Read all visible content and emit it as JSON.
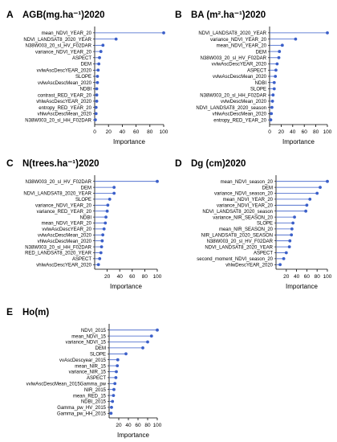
{
  "chart_data": [
    {
      "panel_letter": "A",
      "title": "AGB(mg.ha⁻¹)2020",
      "type": "lollipop",
      "xlabel": "Importance",
      "xlim": [
        0,
        100
      ],
      "xticks": [
        0,
        20,
        40,
        60,
        80,
        100
      ],
      "categories": [
        "mean_NDVI_YEAR_20",
        "NDVI_LANDSAT8_2020_YEAR",
        "N38W003_20_sl_HV_F02DAR",
        "variance_NDVI_YEAR_20",
        "ASPECT",
        "DEM",
        "vvlwAscDescYEAR_2020",
        "SLOPE",
        "vvlwAscDescMean_2020",
        "NDBI",
        "contrast_RED_YEAR_20",
        "vhlwAscDescYEAR_2020",
        "entropy_RED_YEAR_20",
        "vhlwAscDescMean_2020",
        "N38W003_20_sl_HH_F02DAR"
      ],
      "values": [
        100,
        31,
        12,
        9,
        7,
        6,
        5,
        4,
        4,
        3,
        3,
        3,
        2,
        2,
        1
      ]
    },
    {
      "panel_letter": "B",
      "title": "BA (m².ha⁻¹)2020",
      "type": "lollipop",
      "xlabel": "Importance",
      "xlim": [
        0,
        100
      ],
      "xticks": [
        0,
        20,
        40,
        60,
        80,
        100
      ],
      "categories": [
        "NDVI_LANDSAT8_2020_YEAR",
        "variance_NDVI_YEAR_20",
        "mean_NDVI_YEAR_20",
        "DEM",
        "N38W003_20_sl_HV_F02DAR",
        "vvlwAscDescYEAR_2020",
        "ASPECT",
        "vvlwAscDescMean_2020",
        "NDBI",
        "SLOPE",
        "N38W003_20_sl_HH_F02DAR",
        "vvlwDescMean_2020",
        "NDVI_LANDSAT8_2020_season",
        "vhlwAscDescMean_2020",
        "entropy_RED_YEAR_20"
      ],
      "values": [
        100,
        45,
        22,
        17,
        16,
        13,
        11,
        10,
        8,
        8,
        6,
        5,
        4,
        3,
        2
      ]
    },
    {
      "panel_letter": "C",
      "title": "N(trees.ha⁻¹)2020",
      "type": "lollipop",
      "xlabel": "Importance",
      "xlim": [
        0,
        100
      ],
      "xticks": [
        20,
        40,
        60,
        80,
        100
      ],
      "categories": [
        "N38W003_20_sl_HV_F02DAR",
        "DEM",
        "NDVI_LANDSAT8_2020_YEAR",
        "SLOPE",
        "variance_NDVI_YEAR_20",
        "variance_RED_YEAR_20",
        "NDBI",
        "mean_NDVI_YEAR_20",
        "vvlwAscDescYEAR_20",
        "vvlwAscDescMean_2020",
        "vhlwAscDescMean_2020",
        "N38W003_20_sl_HH_F02DAR",
        "RED_LANDSAT8_2020_YEAR",
        "ASPECT",
        "vhlwAscDescYEAR_2020"
      ],
      "values": [
        100,
        31,
        31,
        24,
        21,
        20,
        18,
        17,
        15,
        13,
        12,
        11,
        10,
        8,
        6
      ]
    },
    {
      "panel_letter": "D",
      "title": "Dg (cm)2020",
      "type": "lollipop",
      "xlabel": "Importance",
      "xlim": [
        0,
        100
      ],
      "xticks": [
        20,
        40,
        60,
        80,
        100
      ],
      "categories": [
        "mean_NDVI_season_20",
        "DEM",
        "variance_NDVI_season_20",
        "mean_NDVI_YEAR_20",
        "variance_NDVI_YEAR_20",
        "NDVI_LANDSAT8_2020_season",
        "variance_NIR_SEASON_20",
        "SLOPE",
        "mean_NIR_SEASON_20",
        "NIR_LANDSAT8_2020_SEASON",
        "N38W003_20_sl_HV_F02DAR",
        "NDVI_LANDSAT8_2020_YEAR",
        "ASPECT",
        "second_moment_NDVI_season_20",
        "vhlwDescYEAR_2020"
      ],
      "values": [
        100,
        86,
        80,
        66,
        60,
        58,
        36,
        33,
        31,
        30,
        27,
        26,
        20,
        15,
        8
      ]
    },
    {
      "panel_letter": "E",
      "title": "Ho(m)",
      "type": "lollipop",
      "xlabel": "Importance",
      "xlim": [
        0,
        100
      ],
      "xticks": [
        20,
        40,
        60,
        80,
        100
      ],
      "categories": [
        "NDVI_2015",
        "mean_NDVI_15",
        "variance_NDVI_15",
        "DEM",
        "SLOPE",
        "vvAscDescyear_2015",
        "mean_NIR_15",
        "variance_NIR_15",
        "ASPECT",
        "vvlwAscDescMean_2015Gamma_pw",
        "NIR_2015",
        "mean_RED_15",
        "NDBI_2015",
        "Gamma_pw_HV_2015",
        "Gamma_pw_HH_2015"
      ],
      "values": [
        100,
        88,
        80,
        70,
        35,
        18,
        17,
        15,
        14,
        12,
        10,
        9,
        7,
        5,
        4
      ]
    }
  ],
  "colors": {
    "point": "#3b5fc9",
    "line": "#3b5fc9",
    "axis": "#000000",
    "text": "#000000"
  }
}
